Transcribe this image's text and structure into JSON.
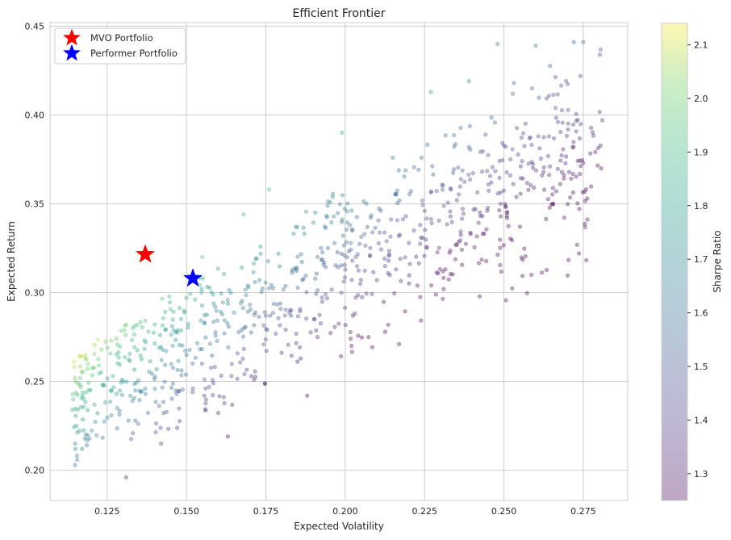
{
  "chart_data": {
    "type": "scatter",
    "title": "Efficient Frontier",
    "xlabel": "Expected Volatility",
    "ylabel": "Expected Return",
    "xlim": [
      0.107,
      0.289
    ],
    "ylim": [
      0.183,
      0.452
    ],
    "xticks": [
      "0.125",
      "0.150",
      "0.175",
      "0.200",
      "0.225",
      "0.250",
      "0.275"
    ],
    "yticks": [
      "0.20",
      "0.25",
      "0.30",
      "0.35",
      "0.40",
      "0.45"
    ],
    "grid": true,
    "legend_placement": "top-left",
    "highlights": [
      {
        "label": "MVO Portfolio",
        "x": 0.137,
        "y": 0.3215,
        "color": "#ff0000",
        "marker": "star"
      },
      {
        "label": "Performer Portfolio",
        "x": 0.152,
        "y": 0.308,
        "color": "#0000ff",
        "marker": "star"
      }
    ],
    "colorbar": {
      "label": "Sharpe Ratio",
      "range": [
        1.25,
        2.14
      ],
      "ticks": [
        "1.3",
        "1.4",
        "1.5",
        "1.6",
        "1.7",
        "1.8",
        "1.9",
        "2.0",
        "2.1"
      ],
      "colormap": "viridis"
    },
    "cloud": {
      "count": 900,
      "seed": 7,
      "x_range": [
        0.114,
        0.281
      ],
      "y_range": [
        0.195,
        0.441
      ],
      "sample_points": [
        {
          "x": 0.115,
          "y": 0.212
        },
        {
          "x": 0.121,
          "y": 0.237
        },
        {
          "x": 0.124,
          "y": 0.248
        },
        {
          "x": 0.131,
          "y": 0.196
        },
        {
          "x": 0.133,
          "y": 0.28
        },
        {
          "x": 0.142,
          "y": 0.215
        },
        {
          "x": 0.163,
          "y": 0.219
        },
        {
          "x": 0.188,
          "y": 0.242
        },
        {
          "x": 0.202,
          "y": 0.27
        },
        {
          "x": 0.217,
          "y": 0.271
        },
        {
          "x": 0.231,
          "y": 0.302
        },
        {
          "x": 0.262,
          "y": 0.366
        },
        {
          "x": 0.275,
          "y": 0.373
        },
        {
          "x": 0.281,
          "y": 0.397
        },
        {
          "x": 0.275,
          "y": 0.441
        },
        {
          "x": 0.272,
          "y": 0.441
        },
        {
          "x": 0.26,
          "y": 0.439
        },
        {
          "x": 0.248,
          "y": 0.44
        },
        {
          "x": 0.239,
          "y": 0.419
        },
        {
          "x": 0.227,
          "y": 0.413
        },
        {
          "x": 0.199,
          "y": 0.39
        },
        {
          "x": 0.176,
          "y": 0.358
        },
        {
          "x": 0.168,
          "y": 0.344
        },
        {
          "x": 0.155,
          "y": 0.32
        }
      ]
    }
  }
}
